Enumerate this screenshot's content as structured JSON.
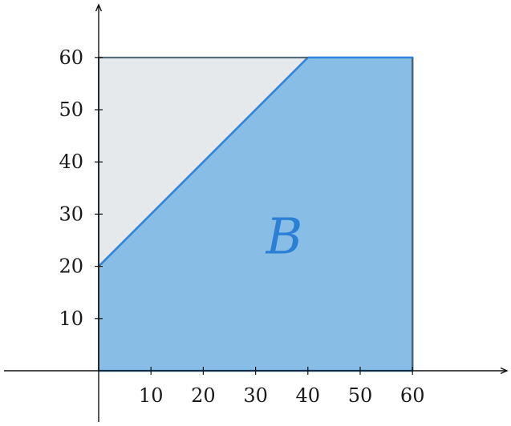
{
  "region_label": "B",
  "colors": {
    "region_fill": "#88bde6",
    "region_edge": "#2e86de",
    "complement_fill": "#e6e9ec",
    "square_edge": "#4d6470",
    "axis": "#111111",
    "label": "#2b7fd4"
  },
  "chart_data": {
    "type": "area",
    "x_ticks": [
      "10",
      "20",
      "30",
      "40",
      "50",
      "60"
    ],
    "y_ticks": [
      "10",
      "20",
      "30",
      "40",
      "50",
      "60"
    ],
    "xlim": [
      0,
      60
    ],
    "ylim": [
      0,
      60
    ],
    "square": {
      "x": [
        0,
        60
      ],
      "y": [
        0,
        60
      ]
    },
    "boundary_line": {
      "x": [
        0,
        40
      ],
      "y": [
        20,
        60
      ]
    },
    "region_B_vertices": [
      [
        0,
        0
      ],
      [
        60,
        0
      ],
      [
        60,
        60
      ],
      [
        40,
        60
      ],
      [
        0,
        20
      ]
    ],
    "grid": false
  }
}
